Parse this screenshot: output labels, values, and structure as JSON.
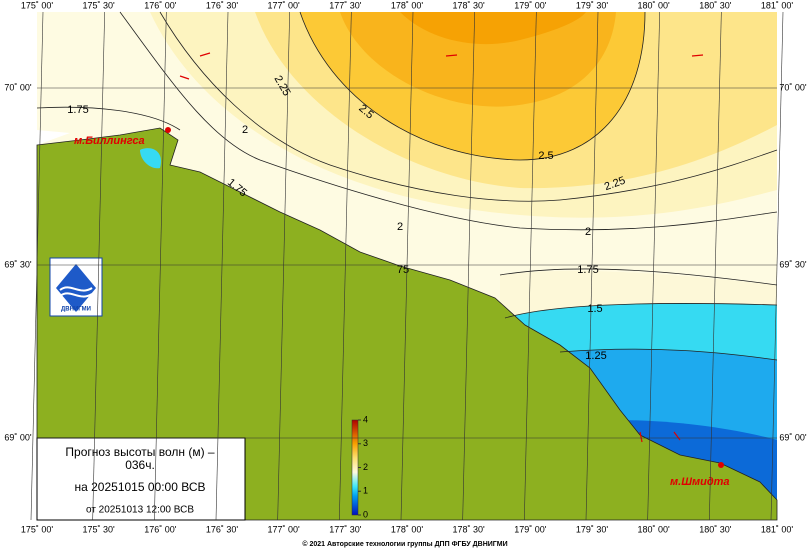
{
  "map": {
    "longitude_labels": [
      "175˚ 00'",
      "175˚ 30'",
      "176˚ 00'",
      "176˚ 30'",
      "177˚ 00'",
      "177˚ 30'",
      "178˚ 00'",
      "178˚ 30'",
      "179˚ 00'",
      "179˚ 30'",
      "180˚ 00'",
      "180˚ 30'",
      "181˚ 00'"
    ],
    "latitude_labels": [
      "70˚ 00'",
      "69˚ 30'",
      "69˚ 00'"
    ],
    "contour_labels": [
      "1.75",
      "2.25",
      "2",
      "2.5",
      "2.5",
      "2.25",
      "1.75",
      "2",
      "2",
      "1.75",
      "75",
      "1.5",
      "1.25"
    ],
    "places": [
      "м.Биллингса",
      "м.Шмидта"
    ],
    "logo_text": "ДВНИГМИ",
    "legend": {
      "title": "Прогноз высоты волн (м) –",
      "lead": "036ч.",
      "valid": "на 20251015 00:00 ВСВ",
      "issued": "от 20251013 12:00 ВСВ"
    },
    "colorbar_ticks": [
      0,
      1,
      2,
      3,
      4
    ],
    "copyright": "© 2021 Авторские технологии группы ДПП ФГБУ ДВНИГМИ"
  }
}
